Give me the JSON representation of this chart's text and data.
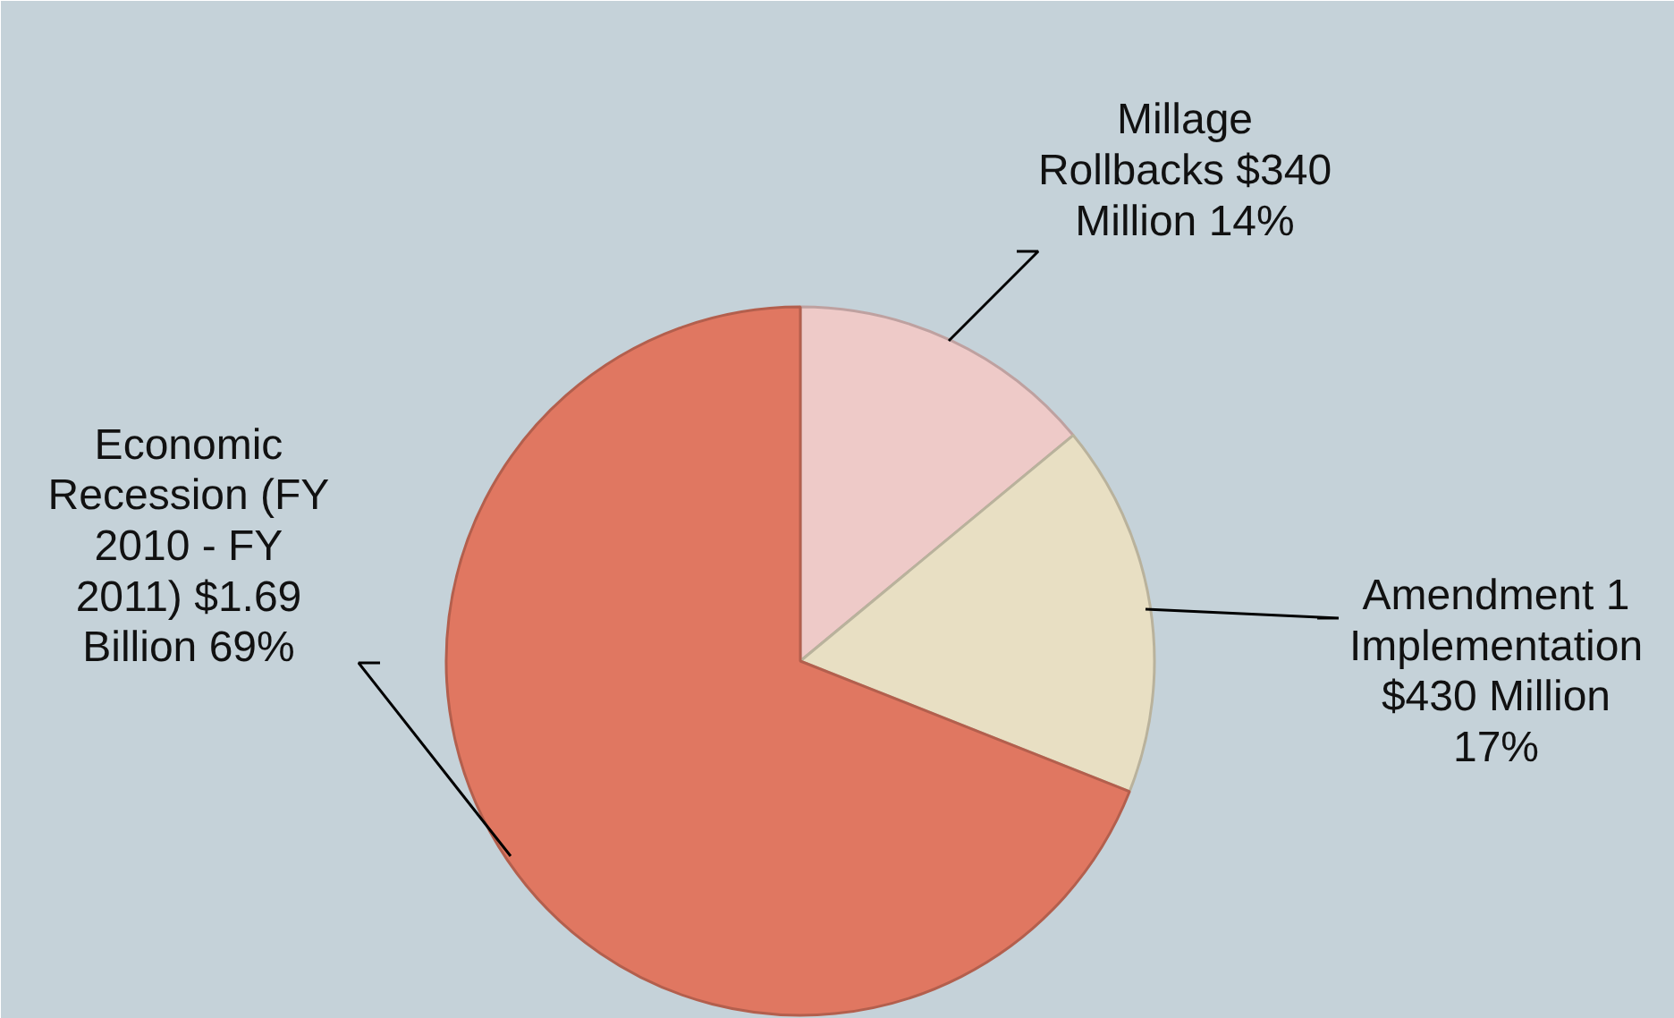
{
  "chart_data": {
    "type": "pie",
    "categories": [
      "Millage Rollbacks",
      "Amendment 1 Implementation",
      "Economic Recession (FY 2010 - FY 2011)"
    ],
    "values": [
      14,
      17,
      69
    ],
    "value_labels": [
      "$340 Million 14%",
      "$430 Million 17%",
      "$1.69 Billion 69%"
    ],
    "colors": [
      "#eecac8",
      "#e8dfc3",
      "#e07761"
    ]
  }
}
